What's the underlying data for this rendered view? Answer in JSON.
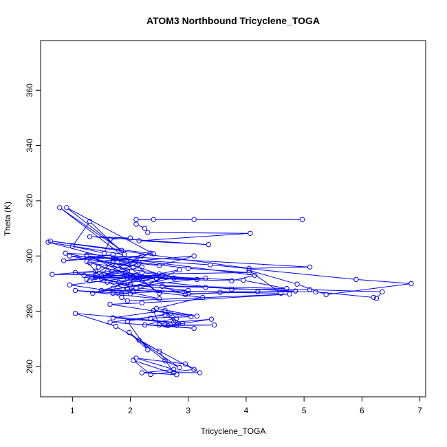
{
  "chart_data": {
    "type": "line",
    "title": "ATOM3 Northbound Tricyclene_TOGA",
    "xlabel": "Tricyclene_TOGA",
    "ylabel": "Theta (K)",
    "xlim": [
      0.45,
      7.1
    ],
    "ylim": [
      249,
      378
    ],
    "xticks": [
      1,
      2,
      3,
      4,
      5,
      6,
      7
    ],
    "yticks": [
      260,
      280,
      300,
      320,
      340,
      360
    ],
    "grid": false,
    "series": [
      {
        "color": "#0000ff",
        "marker": "open-circle",
        "points": [
          [
            4.97,
            313.2
          ],
          [
            3.1,
            313.2
          ],
          [
            2.4,
            313.2
          ],
          [
            2.1,
            313.2
          ],
          [
            2.1,
            311.5
          ],
          [
            2.25,
            310.0
          ],
          [
            2.3,
            308.5
          ],
          [
            4.07,
            308.2
          ],
          [
            2.15,
            305.5
          ],
          [
            3.35,
            304.1
          ],
          [
            1.3,
            307.0
          ],
          [
            2.0,
            306.5
          ],
          [
            1.65,
            306.0
          ],
          [
            1.55,
            301.0
          ],
          [
            1.0,
            303.5
          ],
          [
            1.3,
            312.5
          ],
          [
            1.9,
            300.5
          ],
          [
            0.58,
            305.0
          ],
          [
            1.85,
            298.0
          ],
          [
            2.5,
            296.5
          ],
          [
            3.1,
            300.0
          ],
          [
            2.0,
            298.0
          ],
          [
            0.78,
            317.5
          ],
          [
            1.85,
            302.0
          ],
          [
            0.9,
            317.5
          ],
          [
            2.4,
            300.8
          ],
          [
            0.62,
            305.4
          ],
          [
            4.05,
            295.5
          ],
          [
            5.1,
            296.0
          ],
          [
            0.88,
            301.0
          ],
          [
            2.05,
            296.0
          ],
          [
            0.95,
            300.0
          ],
          [
            3.38,
            296.8
          ],
          [
            5.9,
            291.5
          ],
          [
            6.85,
            290.0
          ],
          [
            5.38,
            286.0
          ],
          [
            4.88,
            289.8
          ],
          [
            4.05,
            294.8
          ],
          [
            4.6,
            286.5
          ],
          [
            3.55,
            286.8
          ],
          [
            2.95,
            286.0
          ],
          [
            2.55,
            289.0
          ],
          [
            3.3,
            288.6
          ],
          [
            4.85,
            287.3
          ],
          [
            3.0,
            286.3
          ],
          [
            2.1,
            288.5
          ],
          [
            1.7,
            286.5
          ],
          [
            1.85,
            285.0
          ],
          [
            1.95,
            283.8
          ],
          [
            4.75,
            286.2
          ],
          [
            2.2,
            283.0
          ],
          [
            1.65,
            282.5
          ],
          [
            3.05,
            278.0
          ],
          [
            2.35,
            277.5
          ],
          [
            2.6,
            275.0
          ],
          [
            3.45,
            275.0
          ],
          [
            2.65,
            274.8
          ],
          [
            3.4,
            277.1
          ],
          [
            2.75,
            276.0
          ],
          [
            1.05,
            279.2
          ],
          [
            1.75,
            274.5
          ],
          [
            2.5,
            265.5
          ],
          [
            2.75,
            257.8
          ],
          [
            3.2,
            257.7
          ],
          [
            2.95,
            260.9
          ],
          [
            2.1,
            263.0
          ],
          [
            2.75,
            258.9
          ],
          [
            2.2,
            257.7
          ],
          [
            2.8,
            257.0
          ],
          [
            2.05,
            262.2
          ],
          [
            2.35,
            257.1
          ],
          [
            3.1,
            258.9
          ],
          [
            2.15,
            269.5
          ],
          [
            2.85,
            259.6
          ],
          [
            2.6,
            262.0
          ],
          [
            1.98,
            272.3
          ],
          [
            2.3,
            266.0
          ],
          [
            1.95,
            276.3
          ],
          [
            2.7,
            279.3
          ],
          [
            2.8,
            277.5
          ],
          [
            2.25,
            275.0
          ],
          [
            2.8,
            274.9
          ],
          [
            2.6,
            280.3
          ],
          [
            1.7,
            277.6
          ],
          [
            2.9,
            275.6
          ],
          [
            2.6,
            278.6
          ],
          [
            1.65,
            276.0
          ],
          [
            3.1,
            273.8
          ],
          [
            2.5,
            275.0
          ],
          [
            2.4,
            280.2
          ],
          [
            3.15,
            278.2
          ],
          [
            2.45,
            281.0
          ],
          [
            3.25,
            285.0
          ],
          [
            1.95,
            288.0
          ],
          [
            1.6,
            290.5
          ],
          [
            2.15,
            291.5
          ],
          [
            1.35,
            286.5
          ],
          [
            2.75,
            292.0
          ],
          [
            1.5,
            293.0
          ],
          [
            3.15,
            291.5
          ],
          [
            2.2,
            294.0
          ],
          [
            1.25,
            291.5
          ],
          [
            1.7,
            297.5
          ],
          [
            2.2,
            296.0
          ],
          [
            1.4,
            292.2
          ],
          [
            3.3,
            292.0
          ],
          [
            1.5,
            287.5
          ],
          [
            4.2,
            287.0
          ],
          [
            5.2,
            287.0
          ],
          [
            6.2,
            285.0
          ],
          [
            6.25,
            284.6
          ],
          [
            6.35,
            287.0
          ],
          [
            5.1,
            287.8
          ],
          [
            3.75,
            288.0
          ],
          [
            2.2,
            291.2
          ],
          [
            1.4,
            294.5
          ],
          [
            0.65,
            293.3
          ],
          [
            1.4,
            293.2
          ],
          [
            2.6,
            292.5
          ],
          [
            3.95,
            291.2
          ],
          [
            4.7,
            288.2
          ],
          [
            2.0,
            289.5
          ],
          [
            1.2,
            293.0
          ],
          [
            1.95,
            292.0
          ],
          [
            0.95,
            289.5
          ],
          [
            2.0,
            286.3
          ],
          [
            1.05,
            287.5
          ],
          [
            2.5,
            284.5
          ],
          [
            1.7,
            288.3
          ],
          [
            2.05,
            292.5
          ],
          [
            1.25,
            298.0
          ],
          [
            1.5,
            292.0
          ],
          [
            2.45,
            291.8
          ],
          [
            3.75,
            291.0
          ],
          [
            4.15,
            293.0
          ],
          [
            2.1,
            298.5
          ],
          [
            1.25,
            300.0
          ],
          [
            3.0,
            295.5
          ],
          [
            4.05,
            294.0
          ],
          [
            2.5,
            293.5
          ],
          [
            1.3,
            297.5
          ],
          [
            2.2,
            300.0
          ],
          [
            0.85,
            298.3
          ],
          [
            1.7,
            300.5
          ],
          [
            2.2,
            292.5
          ],
          [
            1.6,
            294.2
          ],
          [
            2.35,
            301.0
          ],
          [
            1.7,
            298.0
          ],
          [
            2.5,
            286.5
          ],
          [
            2.1,
            293.0
          ],
          [
            1.85,
            286.5
          ],
          [
            3.0,
            287.5
          ],
          [
            1.3,
            291.0
          ],
          [
            2.15,
            297.5
          ],
          [
            1.7,
            299.0
          ],
          [
            2.55,
            293.0
          ],
          [
            2.0,
            292.8
          ],
          [
            1.25,
            300.3
          ],
          [
            1.95,
            294.5
          ],
          [
            1.05,
            294.0
          ],
          [
            1.8,
            290.5
          ],
          [
            2.85,
            295.0
          ],
          [
            2.05,
            287.0
          ],
          [
            1.9,
            290.0
          ],
          [
            2.45,
            292.0
          ],
          [
            1.45,
            296.0
          ]
        ]
      }
    ]
  }
}
